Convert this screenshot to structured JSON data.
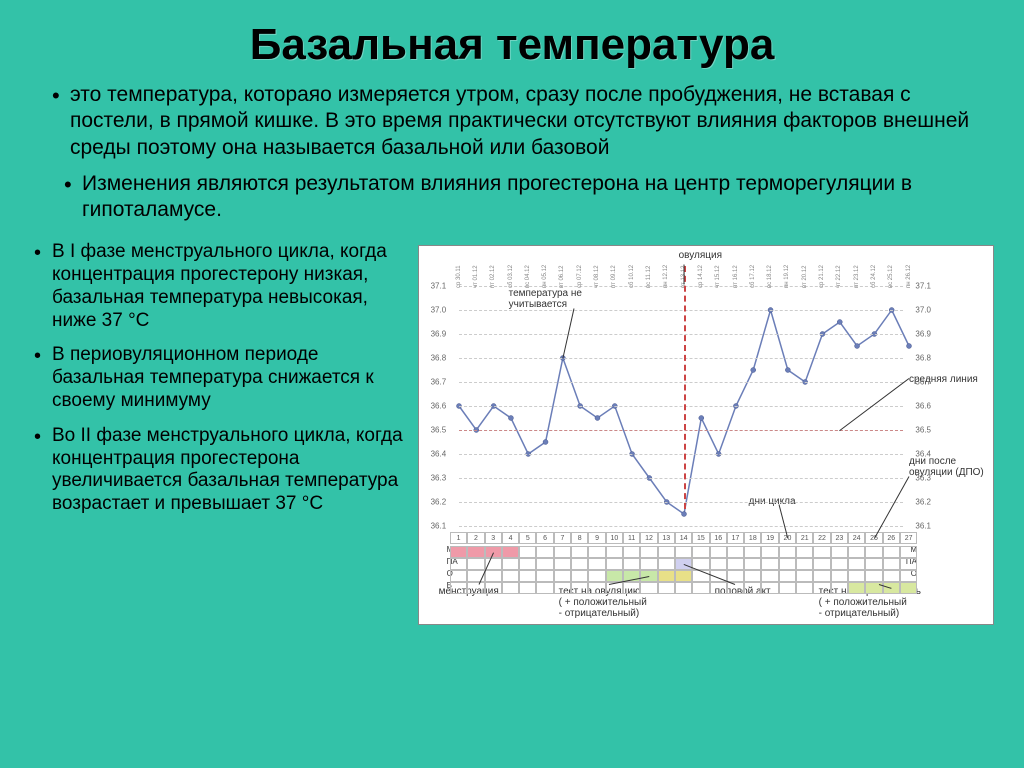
{
  "title": "Базальная температура",
  "intro1": "это температура, котораяо измеряется утром, сразу после пробуджения, не вставая с постели, в прямой кишке. В это время практически отсутствуют влияния факторов внешней среды поэтому она называется базальной или базовой",
  "intro2": "Изменения являются результатом влияния прогестерона на центр терморегуляции в гипоталамусе.",
  "bullets": [
    "В I фазе менструального цикла, когда концентрация прогестерону низкая, базальная температура невысокая, ниже 37 °С",
    "В периовуляционном периоде базальная температура снижается к своему минимуму",
    "Во II фазе менструального цикла, когда концентрация прогестерона увеличивается базальная температура возрастает и превышает 37 °С"
  ],
  "chart": {
    "type": "line",
    "ylabels": [
      "37.1",
      "37.0",
      "36.9",
      "36.8",
      "36.7",
      "36.6",
      "36.5",
      "36.4",
      "36.3",
      "36.2",
      "36.1"
    ],
    "ymin": 36.1,
    "ymax": 37.1,
    "days": 27,
    "dates": [
      "ср 30.11",
      "чт 01.12",
      "пт 02.12",
      "сб 03.12",
      "вс 04.12",
      "пн 05.12",
      "вт 06.12",
      "ср 07.12",
      "чт 08.12",
      "пт 09.12",
      "сб 10.12",
      "вс 11.12",
      "пн 12.12",
      "вт 13.12",
      "ср 14.12",
      "чт 15.12",
      "пт 16.12",
      "сб 17.12",
      "вс 18.12",
      "пн 19.12",
      "вт 20.12",
      "ср 21.12",
      "чт 22.12",
      "пт 23.12",
      "сб 24.12",
      "вс 25.12",
      "пн 26.12"
    ],
    "values": [
      36.6,
      36.5,
      36.6,
      36.55,
      36.4,
      36.45,
      36.8,
      36.6,
      36.55,
      36.6,
      36.4,
      36.3,
      36.2,
      36.15,
      36.55,
      36.4,
      36.6,
      36.75,
      37.0,
      36.75,
      36.7,
      36.9,
      36.95,
      36.85,
      36.9,
      37.0,
      36.85
    ],
    "line_color": "#6b7eb8",
    "midline_y": 36.5,
    "ovulation_day": 14,
    "annotations": {
      "ovul": "овуляция",
      "temp_ignore": "температура не учитывается",
      "midline": "средняя линия",
      "dpo": "дни после овуляции (ДПО)",
      "cycle_days": "дни цикла",
      "menstr": "менструация",
      "ovtest": "тест на овуляцию\n( + положительный\n- отрицательный)",
      "coitus": "половой акт",
      "pregtest": "тест на беременность\n( + положительный\n- отрицательный)"
    },
    "row_labels": [
      "М",
      "ПА",
      "О",
      "Б"
    ],
    "menstr_cells": [
      1,
      2,
      3,
      4
    ],
    "ovtest_cells": [
      10,
      11,
      12,
      13,
      14
    ],
    "coitus_cells": [
      14
    ],
    "pregtest_cells": [
      24,
      25,
      26,
      27
    ],
    "colors": {
      "menstr": "#ef9aa8",
      "ovtest_neg": "#c8e8a8",
      "ovtest_pos": "#e8e088",
      "pregtest": "#d8e8a0"
    }
  }
}
